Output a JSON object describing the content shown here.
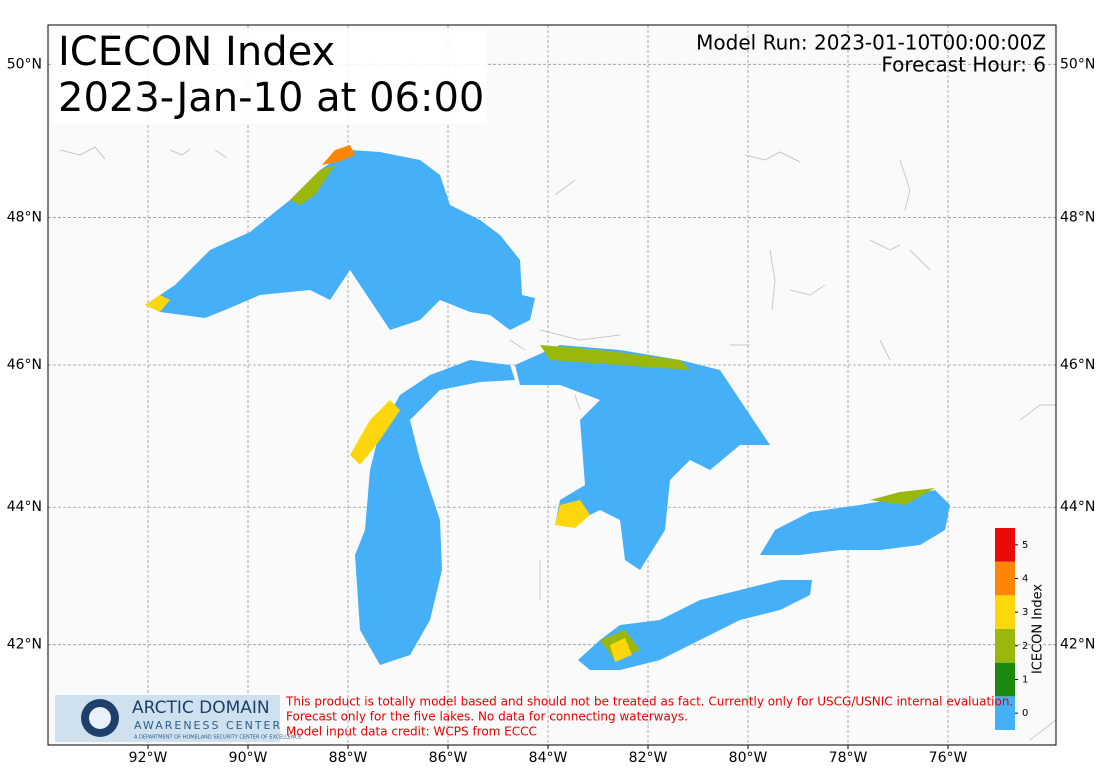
{
  "header": {
    "title": "ICECON Index",
    "subtitle": "2023-Jan-10 at 06:00",
    "model_run": "Model Run: 2023-01-10T00:00:00Z",
    "forecast_hour": "Forecast Hour: 6"
  },
  "map": {
    "projection": "mercator",
    "xlim": [
      -94,
      -73.84
    ],
    "ylim": [
      40.5,
      50.5
    ],
    "xticks": [
      {
        "value": -92,
        "label": "92°W"
      },
      {
        "value": -90,
        "label": "90°W"
      },
      {
        "value": -88,
        "label": "88°W"
      },
      {
        "value": -86,
        "label": "86°W"
      },
      {
        "value": -84,
        "label": "84°W"
      },
      {
        "value": -82,
        "label": "82°W"
      },
      {
        "value": -80,
        "label": "80°W"
      },
      {
        "value": -78,
        "label": "78°W"
      },
      {
        "value": -76,
        "label": "76°W"
      }
    ],
    "yticks": [
      {
        "value": 42,
        "label": "42°N"
      },
      {
        "value": 44,
        "label": "44°N"
      },
      {
        "value": 46,
        "label": "46°N"
      },
      {
        "value": 48,
        "label": "48°N"
      },
      {
        "value": 50,
        "label": "50°N"
      }
    ],
    "grid": true
  },
  "colorbar": {
    "label": "ICECON Index",
    "levels": [
      0,
      1,
      2,
      3,
      4,
      5
    ],
    "colors": [
      "#45b0f8",
      "#1a8a0e",
      "#9ab80c",
      "#fdd70b",
      "#fd8606",
      "#e90a0a"
    ]
  },
  "logo": {
    "line1": "ARCTIC DOMAIN",
    "line2": "AWARENESS CENTER",
    "line3": "A DEPARTMENT OF HOMELAND SECURITY CENTER OF EXCELLENCE"
  },
  "disclaimer": [
    "This product is totally model based and should not be treated as fact. Currently only for USCG/USNIC internal evaluation.",
    "Forecast only for the five lakes. No data for connecting waterways.",
    "Model input data credit: WCPS from ECCC"
  ]
}
